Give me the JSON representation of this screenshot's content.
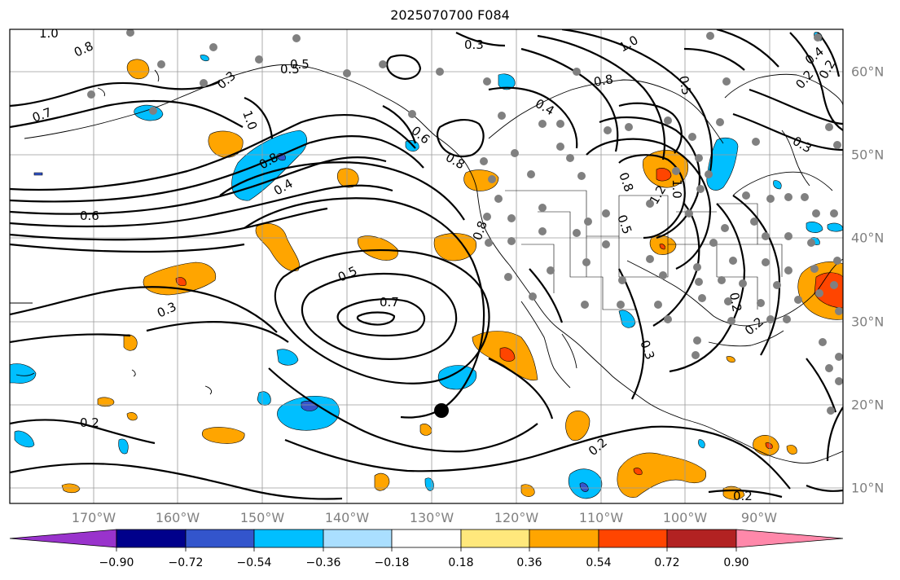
{
  "title": "2025070700 F084",
  "lon_labels": [
    "170°W",
    "160°W",
    "150°W",
    "140°W",
    "130°W",
    "120°W",
    "110°W",
    "100°W",
    "90°W"
  ],
  "lat_labels": [
    "60°N",
    "50°N",
    "40°N",
    "30°N",
    "20°N",
    "10°N"
  ],
  "colorbar": {
    "ticks": [
      "−0.90",
      "−0.72",
      "−0.54",
      "−0.36",
      "−0.18",
      "0.18",
      "0.36",
      "0.54",
      "0.72",
      "0.90"
    ],
    "colors": [
      "#9933cc",
      "#00008b",
      "#3355cc",
      "#00bfff",
      "#aadfff",
      "#ffffff",
      "#ffe87c",
      "#ffa500",
      "#ff4500",
      "#b22222",
      "#ff88aa"
    ]
  },
  "contour_labels": [
    "1.0",
    "0.8",
    "0.7",
    "0.5",
    "0.3",
    "0.8",
    "0.4",
    "0.6",
    "1.0",
    "0.8",
    "0.6",
    "0.5",
    "0.4",
    "1.0",
    "0.4",
    "0.2",
    "0.3",
    "0.8",
    "0.3",
    "0.5",
    "0.7",
    "0.8",
    "0.5",
    "0.8",
    "1.0",
    "1.2",
    "0.5",
    "0.2",
    "0.3",
    "0.3",
    "0.2",
    "0.2",
    "0.2",
    "0.2",
    "0.2"
  ]
}
